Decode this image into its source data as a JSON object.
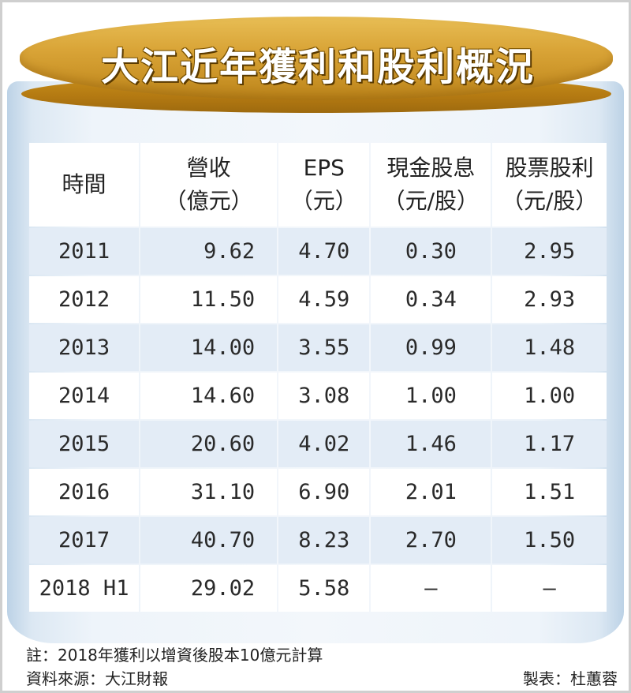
{
  "title": "大江近年獲利和股利概況",
  "table": {
    "headers": [
      [
        "時間"
      ],
      [
        "營收",
        "（億元）"
      ],
      [
        "EPS",
        "（元）"
      ],
      [
        "現金股息",
        "（元/股）"
      ],
      [
        "股票股利",
        "（元/股）"
      ]
    ],
    "rows": [
      [
        "2011",
        "9.62",
        "4.70",
        "0.30",
        "2.95"
      ],
      [
        "2012",
        "11.50",
        "4.59",
        "0.34",
        "2.93"
      ],
      [
        "2013",
        "14.00",
        "3.55",
        "0.99",
        "1.48"
      ],
      [
        "2014",
        "14.60",
        "3.08",
        "1.00",
        "1.00"
      ],
      [
        "2015",
        "20.60",
        "4.02",
        "1.46",
        "1.17"
      ],
      [
        "2016",
        "31.10",
        "6.90",
        "2.01",
        "1.51"
      ],
      [
        "2017",
        "40.70",
        "8.23",
        "2.70",
        "1.50"
      ],
      [
        "2018 H1",
        "29.02",
        "5.58",
        "–",
        "–"
      ]
    ]
  },
  "notes": {
    "note": "註：2018年獲利以增資後股本10億元計算",
    "source": "資料來源：大江財報",
    "credit": "製表：杜蕙蓉"
  },
  "colors": {
    "lid": "#d9a437",
    "jar": "#eef4fa",
    "row_alt": "#e3ecf6"
  }
}
